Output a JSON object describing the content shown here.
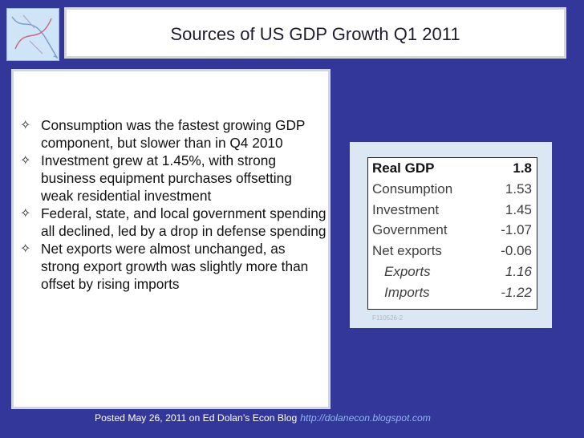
{
  "slide": {
    "title": "Sources of US GDP Growth Q1 2011",
    "bullet_icon": "four-point-star-outline-icon",
    "bullets": [
      "Consumption was the fastest growing GDP component, but slower than in Q4 2010",
      "Investment grew at 1.45%, with strong business equipment purchases offsetting weak residential investment",
      "Federal, state, and local government spending all declined, led by a drop in defense spending",
      "Net exports were almost unchanged, as strong export growth was slightly more than offset by rising imports"
    ]
  },
  "gdp_table": {
    "rows": [
      {
        "label": "Real GDP",
        "value": "1.8"
      },
      {
        "label": "Consumption",
        "value": "1.53"
      },
      {
        "label": "Investment",
        "value": "1.45"
      },
      {
        "label": "Government",
        "value": "-1.07"
      },
      {
        "label": "Net exports",
        "value": "-0.06"
      },
      {
        "label": "Exports",
        "value": "1.16"
      },
      {
        "label": "Imports",
        "value": "-1.22"
      }
    ],
    "watermark": "F110526-2"
  },
  "footer": {
    "text": "Posted May 26, 2011 on Ed Dolan’s Econ Blog",
    "url": "http://dolanecon.blogspot.com"
  },
  "colors": {
    "background": "#33379a",
    "panel_bg": "#dbe8f3",
    "footer_url": "#8fb7f0"
  }
}
